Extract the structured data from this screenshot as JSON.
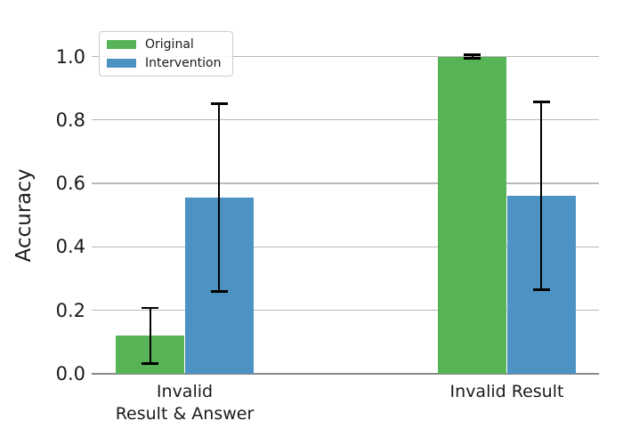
{
  "chart_data": {
    "type": "bar",
    "title": "",
    "xlabel": "",
    "ylabel": "Accuracy",
    "categories": [
      "Invalid\nResult & Answer",
      "Invalid Result"
    ],
    "series": [
      {
        "name": "Original",
        "color": "#56b356",
        "values": [
          0.12,
          1.0
        ],
        "err_minus": [
          0.088,
          0.005
        ],
        "err_plus": [
          0.087,
          0.005
        ]
      },
      {
        "name": "Intervention",
        "color": "#4c92c3",
        "values": [
          0.555,
          0.56
        ],
        "err_minus": [
          0.295,
          0.295
        ],
        "err_plus": [
          0.297,
          0.297
        ]
      }
    ],
    "yticks": [
      "0.0",
      "0.2",
      "0.4",
      "0.6",
      "0.8",
      "1.0"
    ],
    "ylim": [
      0,
      1.095
    ],
    "grid": "horizontal",
    "grid_color": "#b9b9b9",
    "baseline_color": "#8a8a8a",
    "error_bar_color": "#000000",
    "text_color": "#1a1a1a",
    "legend_position": "upper left"
  }
}
